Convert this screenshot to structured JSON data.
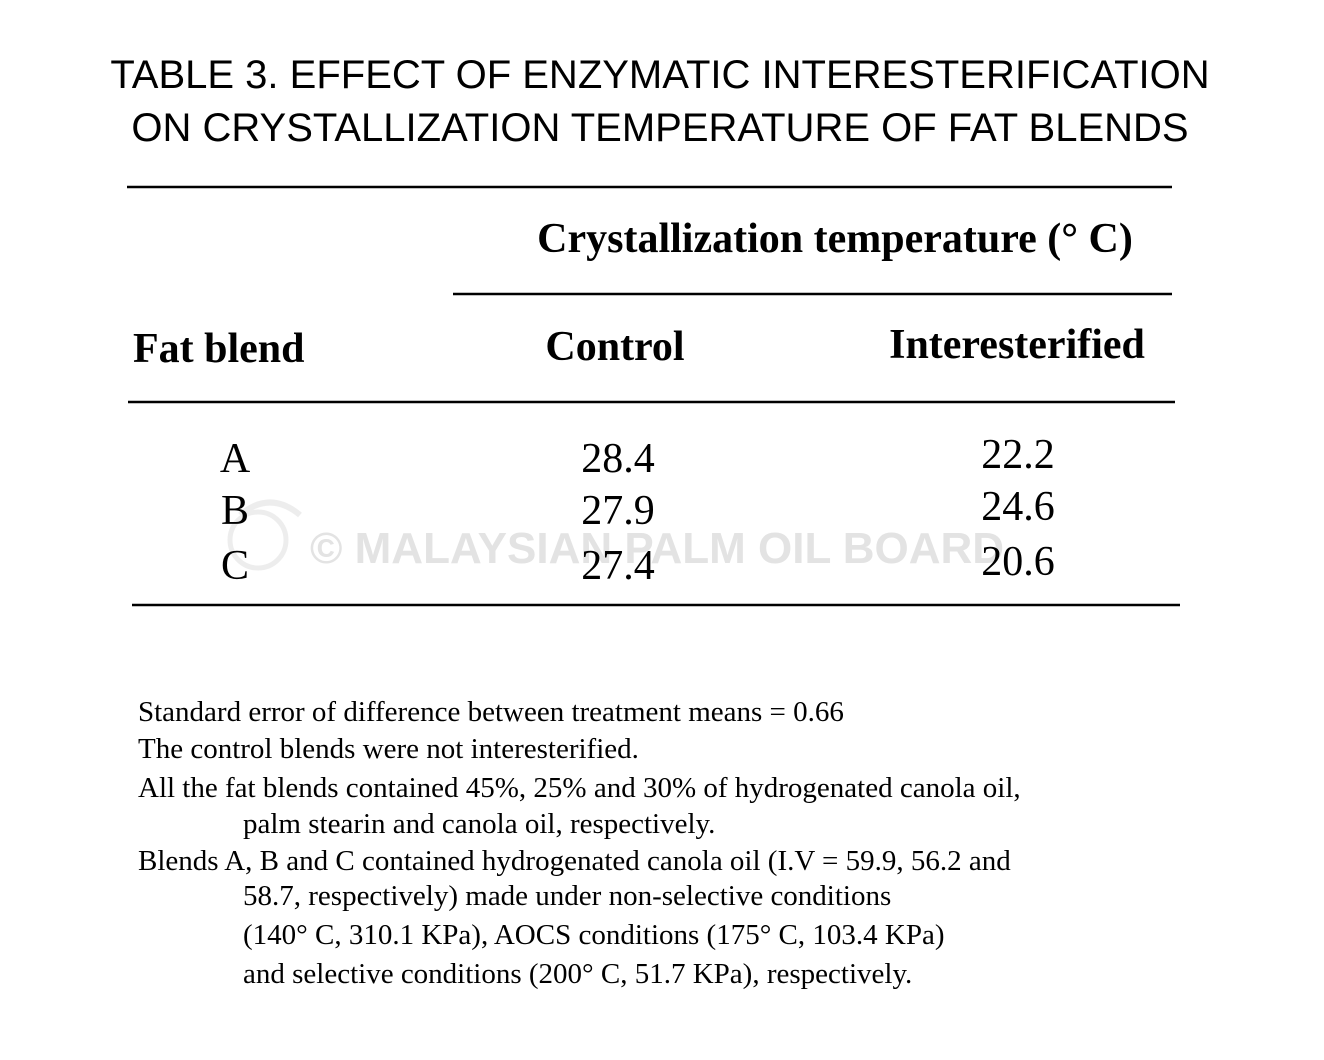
{
  "title": {
    "lines": [
      "TABLE 3.  EFFECT OF ENZYMATIC INTERESTERIFICATION",
      "ON CRYSTALLIZATION TEMPERATURE OF FAT BLENDS"
    ]
  },
  "table": {
    "spanner": "Crystallization temperature (° C)",
    "columns": [
      "Fat blend",
      "Control",
      "Interesterified"
    ],
    "rows": [
      [
        "A",
        "28.4",
        "22.2"
      ],
      [
        "B",
        "27.9",
        "24.6"
      ],
      [
        "C",
        "27.4",
        "20.6"
      ]
    ]
  },
  "watermark": "© MALAYSIAN PALM OIL BOARD",
  "notes": [
    [
      "Standard error of difference between treatment means = 0.66"
    ],
    [
      "The control blends were not interesterified."
    ],
    [
      "All the fat blends contained 45%, 25% and 30% of hydrogenated canola oil,",
      "palm stearin and canola oil, respectively."
    ],
    [
      "Blends A, B and C contained hydrogenated canola oil (I.V = 59.9, 56.2 and",
      "58.7, respectively) made under non-selective conditions",
      "(140° C, 310.1 KPa), AOCS conditions (175° C, 103.4 KPa)",
      "and selective conditions (200° C, 51.7 KPa), respectively."
    ]
  ]
}
